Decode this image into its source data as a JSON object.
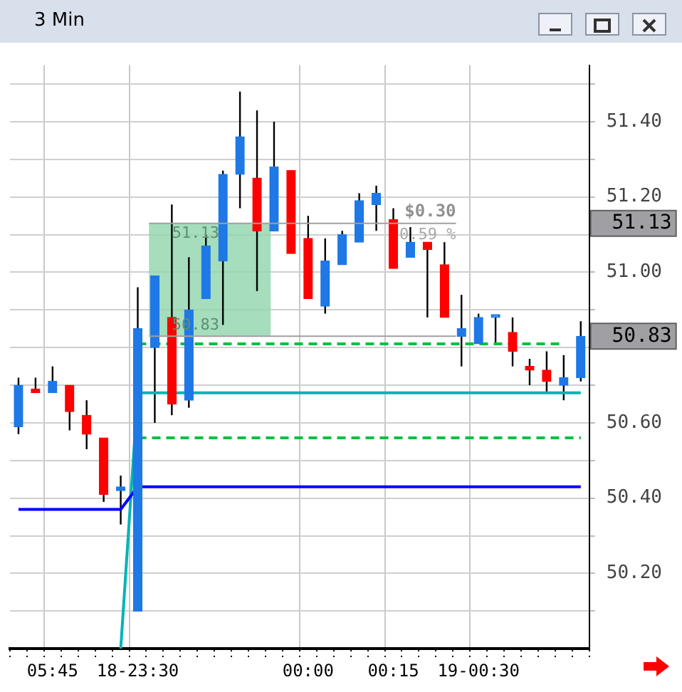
{
  "chart_data": {
    "type": "candlestick",
    "title": "3 Min",
    "categories": [
      null,
      null,
      "05:45",
      null,
      null,
      null,
      null,
      "18-23:30",
      null,
      null,
      null,
      null,
      null,
      null,
      null,
      null,
      null,
      "00:00",
      null,
      null,
      null,
      null,
      "00:15",
      null,
      null,
      null,
      null,
      "19-00:30",
      null,
      null,
      null,
      null,
      null,
      null
    ],
    "ohlc": [
      [
        50.59,
        50.72,
        50.57,
        50.7
      ],
      [
        50.69,
        50.72,
        50.68,
        50.68
      ],
      [
        50.68,
        50.75,
        50.68,
        50.71
      ],
      [
        50.7,
        50.7,
        50.58,
        50.63
      ],
      [
        50.62,
        50.66,
        50.53,
        50.57
      ],
      [
        50.56,
        50.56,
        50.39,
        50.41
      ],
      [
        50.42,
        50.46,
        50.33,
        50.43
      ],
      [
        50.1,
        50.96,
        50.1,
        50.85
      ],
      [
        50.8,
        50.99,
        50.6,
        50.99
      ],
      [
        50.88,
        51.18,
        50.62,
        50.65
      ],
      [
        50.66,
        51.04,
        50.64,
        50.9
      ],
      [
        50.93,
        51.1,
        50.93,
        51.07
      ],
      [
        51.03,
        51.27,
        50.86,
        51.26
      ],
      [
        51.26,
        51.48,
        51.17,
        51.36
      ],
      [
        51.25,
        51.43,
        50.95,
        51.11
      ],
      [
        51.11,
        51.4,
        51.11,
        51.28
      ],
      [
        51.27,
        51.27,
        51.05,
        51.05
      ],
      [
        51.09,
        51.15,
        50.93,
        50.93
      ],
      [
        50.91,
        51.09,
        50.89,
        51.03
      ],
      [
        51.02,
        51.11,
        51.02,
        51.1
      ],
      [
        51.08,
        51.21,
        51.08,
        51.19
      ],
      [
        51.18,
        51.23,
        51.11,
        51.21
      ],
      [
        51.14,
        51.17,
        51.01,
        51.01
      ],
      [
        51.04,
        51.12,
        51.04,
        51.08
      ],
      [
        51.08,
        51.08,
        50.88,
        51.06
      ],
      [
        51.02,
        51.08,
        50.88,
        50.88
      ],
      [
        50.83,
        50.94,
        50.75,
        50.85
      ],
      [
        50.81,
        50.89,
        50.81,
        50.88
      ],
      [
        50.88,
        50.88,
        50.81,
        50.88
      ],
      [
        50.84,
        50.88,
        50.75,
        50.79
      ],
      [
        50.75,
        50.77,
        50.7,
        50.74
      ],
      [
        50.74,
        50.79,
        50.68,
        50.71
      ],
      [
        50.7,
        50.78,
        50.66,
        50.72
      ],
      [
        50.72,
        50.87,
        50.71,
        50.83
      ]
    ],
    "colors": [
      "#1e78e6",
      "#ff0000",
      "#1e78e6",
      "#ff0000",
      "#ff0000",
      "#ff0000",
      "#1e78e6",
      "#1e78e6",
      "#1e78e6",
      "#ff0000",
      "#1e78e6",
      "#1e78e6",
      "#1e78e6",
      "#1e78e6",
      "#ff0000",
      "#1e78e6",
      "#ff0000",
      "#ff0000",
      "#1e78e6",
      "#1e78e6",
      "#1e78e6",
      "#1e78e6",
      "#ff0000",
      "#1e78e6",
      "#ff0000",
      "#ff0000",
      "#1e78e6",
      "#1e78e6",
      "#1e78e6",
      "#ff0000",
      "#ff0000",
      "#ff0000",
      "#1e78e6",
      "#1e78e6"
    ],
    "series": [
      {
        "type": "line",
        "color": "#0000ff",
        "values": [
          50.37,
          50.37,
          50.37,
          50.37,
          50.37,
          50.37,
          50.37,
          50.43,
          50.43,
          50.43,
          50.43,
          50.43,
          50.43,
          50.43,
          50.43,
          50.43,
          50.43,
          50.43,
          50.43,
          50.43,
          50.43,
          50.43,
          50.43,
          50.43,
          50.43,
          50.43,
          50.43,
          50.43,
          50.43,
          50.43,
          50.43,
          50.43,
          50.43,
          50.43
        ]
      },
      {
        "type": "line",
        "color": "#00b4b4",
        "values": [
          null,
          null,
          null,
          null,
          null,
          null,
          50.0,
          50.68,
          50.68,
          50.68,
          50.68,
          50.68,
          50.68,
          50.68,
          50.68,
          50.68,
          50.68,
          50.68,
          50.68,
          50.68,
          50.68,
          50.68,
          50.68,
          50.68,
          50.68,
          50.68,
          50.68,
          50.68,
          50.68,
          50.68,
          50.68,
          50.68,
          50.68,
          50.68
        ]
      },
      {
        "type": "line",
        "color": "#00c040",
        "line_style": "dashed",
        "values": [
          null,
          null,
          null,
          null,
          null,
          null,
          null,
          50.81,
          50.81,
          50.81,
          50.81,
          50.81,
          50.81,
          50.81,
          50.81,
          50.81,
          50.81,
          50.81,
          50.81,
          50.81,
          50.81,
          50.81,
          50.81,
          50.81,
          50.81,
          50.81,
          50.81,
          50.81,
          50.81,
          50.81,
          50.81,
          50.81,
          50.81,
          null
        ]
      },
      {
        "type": "line",
        "color": "#00c040",
        "line_style": "dashed",
        "values": [
          null,
          null,
          null,
          null,
          null,
          null,
          null,
          50.56,
          50.56,
          50.56,
          50.56,
          50.56,
          50.56,
          50.56,
          50.56,
          50.56,
          50.56,
          50.56,
          50.56,
          50.56,
          50.56,
          50.56,
          50.56,
          50.56,
          50.56,
          50.56,
          50.56,
          50.56,
          50.56,
          50.56,
          50.56,
          50.56,
          50.56,
          50.56
        ]
      }
    ],
    "ylim": [
      50.0,
      51.55
    ],
    "yticks": [
      {
        "value": 50.1,
        "label": null
      },
      {
        "value": 50.2,
        "label": "50.20"
      },
      {
        "value": 50.3,
        "label": null
      },
      {
        "value": 50.4,
        "label": "50.40"
      },
      {
        "value": 50.5,
        "label": null
      },
      {
        "value": 50.6,
        "label": "50.60"
      },
      {
        "value": 50.7,
        "label": null
      },
      {
        "value": 50.8,
        "label": null
      },
      {
        "value": 50.9,
        "label": null
      },
      {
        "value": 51.0,
        "label": "51.00"
      },
      {
        "value": 51.1,
        "label": null
      },
      {
        "value": 51.2,
        "label": "51.20"
      },
      {
        "value": 51.3,
        "label": null
      },
      {
        "value": 51.4,
        "label": "51.40"
      },
      {
        "value": 51.5,
        "label": null
      }
    ],
    "grid": true,
    "legend": false,
    "marker": "none",
    "ref_lines": [
      {
        "axis": "y",
        "value": 51.13,
        "label": "51.13",
        "color": "#a0a0a0"
      },
      {
        "axis": "y",
        "value": 50.83,
        "label": "50.83",
        "color": "#a0a0a0"
      }
    ],
    "bands": [
      {
        "axis": "y",
        "from": 50.83,
        "to": 51.13,
        "color": "#8fd4ac"
      }
    ],
    "annotations": [
      "$0.30",
      "0.59 %"
    ]
  }
}
